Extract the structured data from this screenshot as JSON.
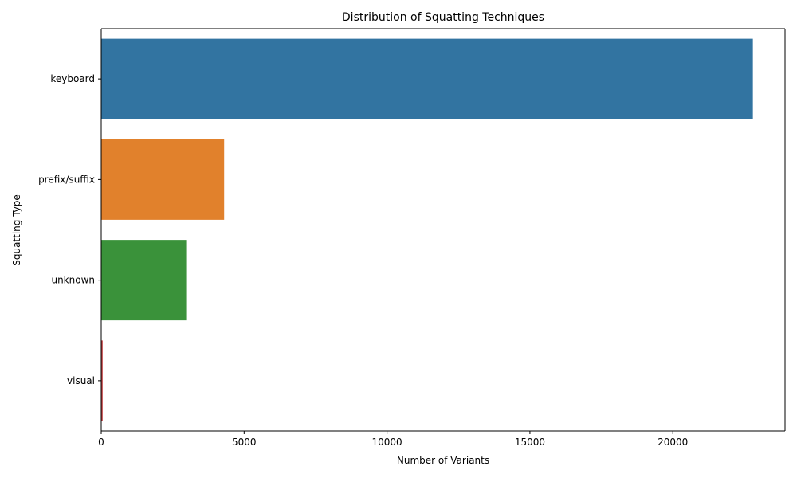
{
  "chart_data": {
    "type": "bar",
    "orientation": "horizontal",
    "title": "Distribution of Squatting Techniques",
    "xlabel": "Number of Variants",
    "ylabel": "Squatting Type",
    "categories": [
      "keyboard",
      "prefix/suffix",
      "unknown",
      "visual"
    ],
    "values": [
      22800,
      4300,
      3000,
      50
    ],
    "colors": [
      "#3274a1",
      "#e1812c",
      "#3a923a",
      "#c03d3e"
    ],
    "xlim": [
      0,
      23925
    ],
    "xticks": [
      0,
      5000,
      10000,
      15000,
      20000
    ],
    "grid": false,
    "legend": "none"
  }
}
